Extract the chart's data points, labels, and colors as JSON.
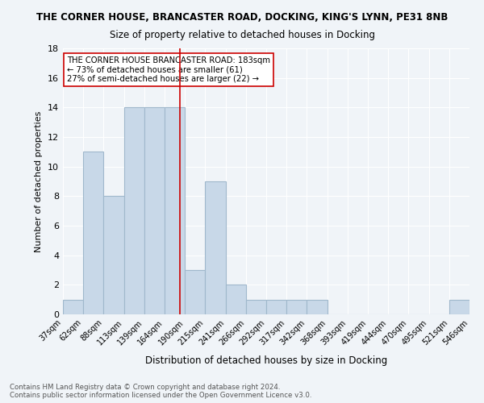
{
  "title1": "THE CORNER HOUSE, BRANCASTER ROAD, DOCKING, KING'S LYNN, PE31 8NB",
  "title2": "Size of property relative to detached houses in Docking",
  "xlabel": "Distribution of detached houses by size in Docking",
  "ylabel": "Number of detached properties",
  "footnote": "Contains HM Land Registry data © Crown copyright and database right 2024.\nContains public sector information licensed under the Open Government Licence v3.0.",
  "bin_labels": [
    "37sqm",
    "62sqm",
    "88sqm",
    "113sqm",
    "139sqm",
    "164sqm",
    "190sqm",
    "215sqm",
    "241sqm",
    "266sqm",
    "292sqm",
    "317sqm",
    "342sqm",
    "368sqm",
    "393sqm",
    "419sqm",
    "444sqm",
    "470sqm",
    "495sqm",
    "521sqm",
    "546sqm"
  ],
  "bar_heights": [
    1,
    11,
    8,
    14,
    14,
    14,
    3,
    9,
    2,
    1,
    1,
    1,
    1,
    0,
    0,
    0,
    0,
    0,
    0,
    1
  ],
  "bar_color": "#c8d8e8",
  "bar_edge_color": "#a0b8cc",
  "vline_x": 5.77,
  "vline_color": "#cc0000",
  "annotation_title": "THE CORNER HOUSE BRANCASTER ROAD: 183sqm",
  "annotation_line1": "← 73% of detached houses are smaller (61)",
  "annotation_line2": "27% of semi-detached houses are larger (22) →",
  "annotation_box_color": "#ffffff",
  "annotation_box_edge": "#cc0000",
  "ylim": [
    0,
    18
  ],
  "yticks": [
    0,
    2,
    4,
    6,
    8,
    10,
    12,
    14,
    16,
    18
  ],
  "background_color": "#f0f4f8",
  "grid_color": "#ffffff"
}
